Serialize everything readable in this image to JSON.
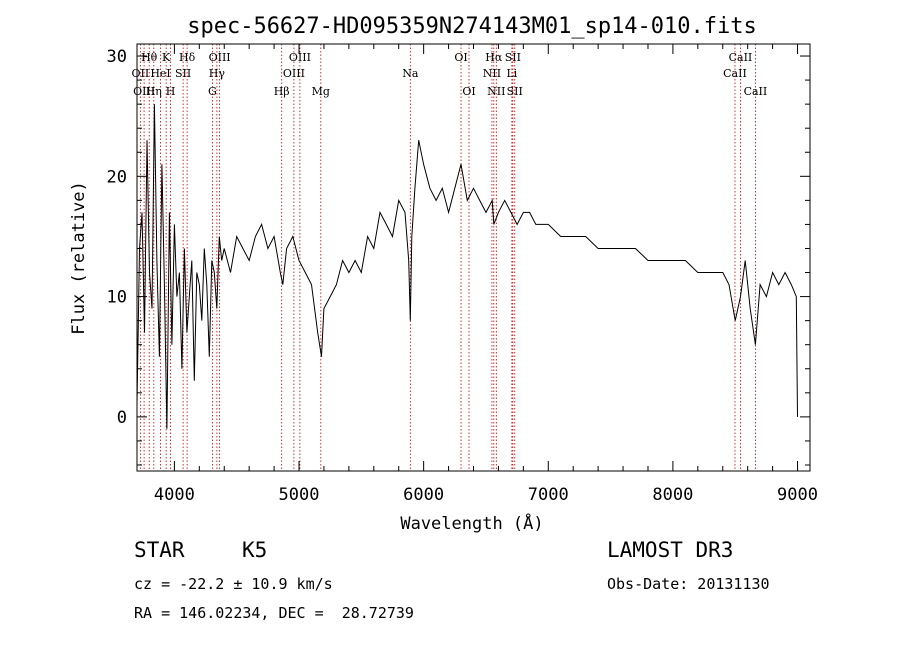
{
  "chart_data": {
    "type": "line",
    "title": "spec-56627-HD095359N274143M01_sp14-010.fits",
    "xlabel": "Wavelength (Å)",
    "ylabel": "Flux (relative)",
    "xlim": [
      3700,
      9100
    ],
    "ylim": [
      -4.5,
      31
    ],
    "xticks": [
      4000,
      5000,
      6000,
      7000,
      8000,
      9000
    ],
    "yticks": [
      0,
      10,
      20,
      30
    ],
    "spectral_lines": [
      {
        "name": "Hθ",
        "wavelength": 3798,
        "row": 1
      },
      {
        "name": "OII",
        "wavelength": 3727,
        "row": 2
      },
      {
        "name": "OIII",
        "wavelength": 3757,
        "row": 3
      },
      {
        "name": "K",
        "wavelength": 3934,
        "row": 1
      },
      {
        "name": "HeI",
        "wavelength": 3889,
        "row": 2
      },
      {
        "name": "Hη",
        "wavelength": 3835,
        "row": 3
      },
      {
        "name": "SII",
        "wavelength": 4070,
        "row": 2
      },
      {
        "name": "H",
        "wavelength": 3969,
        "row": 3
      },
      {
        "name": "Hδ",
        "wavelength": 4102,
        "row": 1
      },
      {
        "name": "OIII",
        "wavelength": 4363,
        "row": 1
      },
      {
        "name": "Hγ",
        "wavelength": 4341,
        "row": 2
      },
      {
        "name": "G",
        "wavelength": 4305,
        "row": 3
      },
      {
        "name": "Hβ",
        "wavelength": 4861,
        "row": 3
      },
      {
        "name": "OIII",
        "wavelength": 5007,
        "row": 1
      },
      {
        "name": "OIII",
        "wavelength": 4959,
        "row": 2
      },
      {
        "name": "Mg",
        "wavelength": 5175,
        "row": 3
      },
      {
        "name": "Na",
        "wavelength": 5893,
        "row": 2
      },
      {
        "name": "OI",
        "wavelength": 6300,
        "row": 1
      },
      {
        "name": "OI",
        "wavelength": 6364,
        "row": 3
      },
      {
        "name": "Hα",
        "wavelength": 6563,
        "row": 1
      },
      {
        "name": "NII",
        "wavelength": 6548,
        "row": 2
      },
      {
        "name": "NII",
        "wavelength": 6583,
        "row": 3
      },
      {
        "name": "SII",
        "wavelength": 6716,
        "row": 1
      },
      {
        "name": "Li",
        "wavelength": 6708,
        "row": 2
      },
      {
        "name": "SII",
        "wavelength": 6731,
        "row": 3
      },
      {
        "name": "CaII",
        "wavelength": 8542,
        "row": 1
      },
      {
        "name": "CaII",
        "wavelength": 8498,
        "row": 2
      },
      {
        "name": "CaII",
        "wavelength": 8662,
        "row": 3
      }
    ],
    "series": [
      {
        "name": "flux",
        "x": [
          3700,
          3720,
          3740,
          3760,
          3780,
          3800,
          3820,
          3840,
          3860,
          3880,
          3900,
          3920,
          3940,
          3960,
          3980,
          4000,
          4020,
          4040,
          4060,
          4080,
          4100,
          4120,
          4140,
          4160,
          4180,
          4200,
          4220,
          4240,
          4260,
          4280,
          4300,
          4320,
          4340,
          4360,
          4380,
          4400,
          4450,
          4500,
          4550,
          4600,
          4650,
          4700,
          4750,
          4800,
          4850,
          4870,
          4900,
          4950,
          5000,
          5050,
          5100,
          5150,
          5180,
          5200,
          5250,
          5300,
          5350,
          5400,
          5450,
          5500,
          5550,
          5600,
          5650,
          5700,
          5750,
          5800,
          5850,
          5880,
          5893,
          5905,
          5930,
          5960,
          6000,
          6050,
          6100,
          6150,
          6200,
          6250,
          6300,
          6350,
          6400,
          6450,
          6500,
          6550,
          6563,
          6600,
          6650,
          6700,
          6750,
          6800,
          6850,
          6900,
          6950,
          7000,
          7100,
          7200,
          7300,
          7400,
          7500,
          7600,
          7700,
          7800,
          7900,
          8000,
          8100,
          8200,
          8300,
          8400,
          8450,
          8500,
          8542,
          8580,
          8620,
          8662,
          8700,
          8750,
          8800,
          8850,
          8900,
          8950,
          8990,
          9000
        ],
        "y": [
          1,
          14,
          17,
          7,
          23,
          12,
          9,
          26,
          13,
          5,
          21,
          11,
          -1,
          17,
          6,
          16,
          10,
          12,
          4,
          14,
          7,
          10,
          13,
          3,
          12,
          11,
          8,
          14,
          11,
          5,
          13,
          12,
          9,
          15,
          13,
          14,
          12,
          15,
          14,
          13,
          15,
          16,
          14,
          15,
          12,
          11,
          14,
          15,
          13,
          12,
          11,
          7,
          5,
          9,
          10,
          11,
          13,
          12,
          13,
          12,
          15,
          14,
          17,
          16,
          15,
          18,
          17,
          13,
          8,
          15,
          19,
          23,
          21,
          19,
          18,
          19,
          17,
          19,
          21,
          18,
          19,
          18,
          17,
          18,
          16,
          17,
          18,
          17,
          16,
          17,
          17,
          16,
          16,
          16,
          15,
          15,
          15,
          14,
          14,
          14,
          14,
          13,
          13,
          13,
          13,
          12,
          12,
          12,
          11,
          8,
          10,
          13,
          9,
          6,
          11,
          10,
          12,
          11,
          12,
          11,
          10,
          0
        ]
      }
    ]
  },
  "info": {
    "class": "STAR",
    "subclass": "K5",
    "survey": "LAMOST DR3",
    "cz": "cz = -22.2 ± 10.9 km/s",
    "obs_date": "Obs-Date: 20131130",
    "radec": "RA = 146.02234, DEC =  28.72739"
  }
}
